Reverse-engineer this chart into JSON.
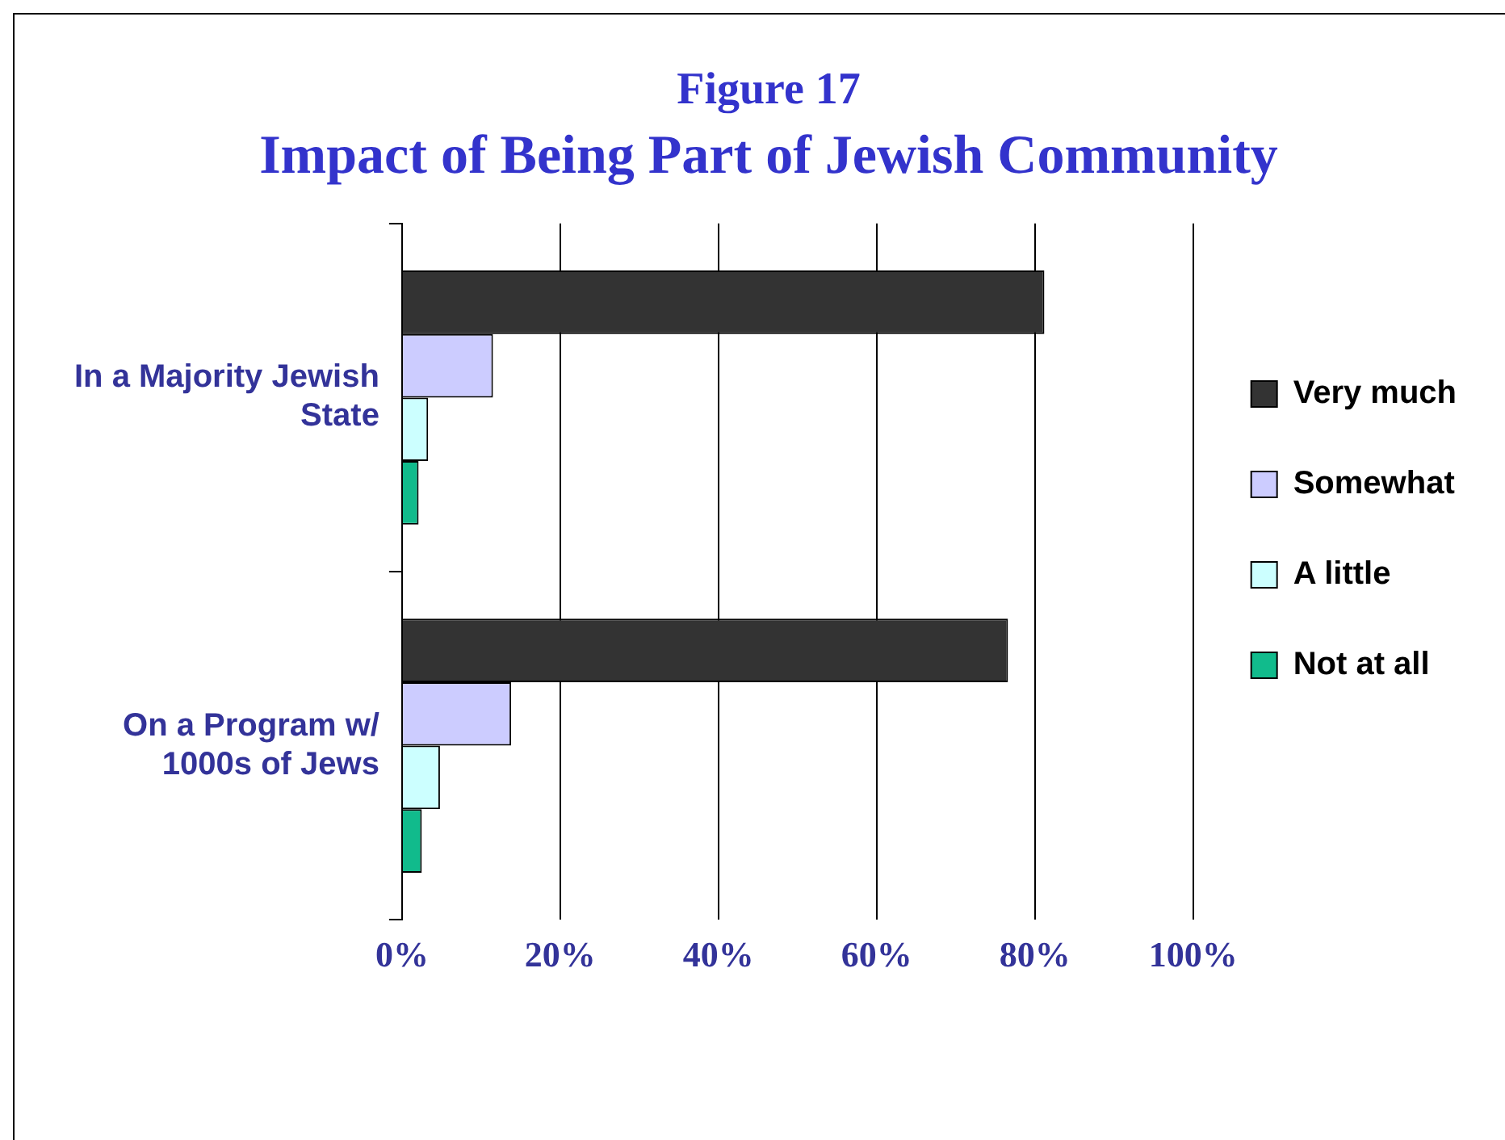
{
  "chart_data": {
    "type": "bar",
    "orientation": "horizontal",
    "title": "Figure 17",
    "subtitle": "Impact of Being Part of Jewish Community",
    "categories": [
      "In a Majority Jewish State",
      "On a Program w/ 1000s of Jews"
    ],
    "series": [
      {
        "name": "Very much",
        "color": "#333333",
        "values": [
          81.2,
          76.6
        ]
      },
      {
        "name": "Somewhat",
        "color": "#ccccff",
        "values": [
          11.5,
          13.8
        ]
      },
      {
        "name": "A little",
        "color": "#ccffff",
        "values": [
          3.3,
          4.8
        ]
      },
      {
        "name": "Not at all",
        "color": "#11bb8c",
        "values": [
          2.1,
          2.5
        ]
      }
    ],
    "xlim": [
      0,
      100
    ],
    "xticks": [
      {
        "value": 0,
        "label": "0%"
      },
      {
        "value": 20,
        "label": "20%"
      },
      {
        "value": 40,
        "label": "40%"
      },
      {
        "value": 60,
        "label": "60%"
      },
      {
        "value": 80,
        "label": "80%"
      },
      {
        "value": 100,
        "label": "100%"
      }
    ],
    "grid": "x",
    "legend": "right"
  }
}
